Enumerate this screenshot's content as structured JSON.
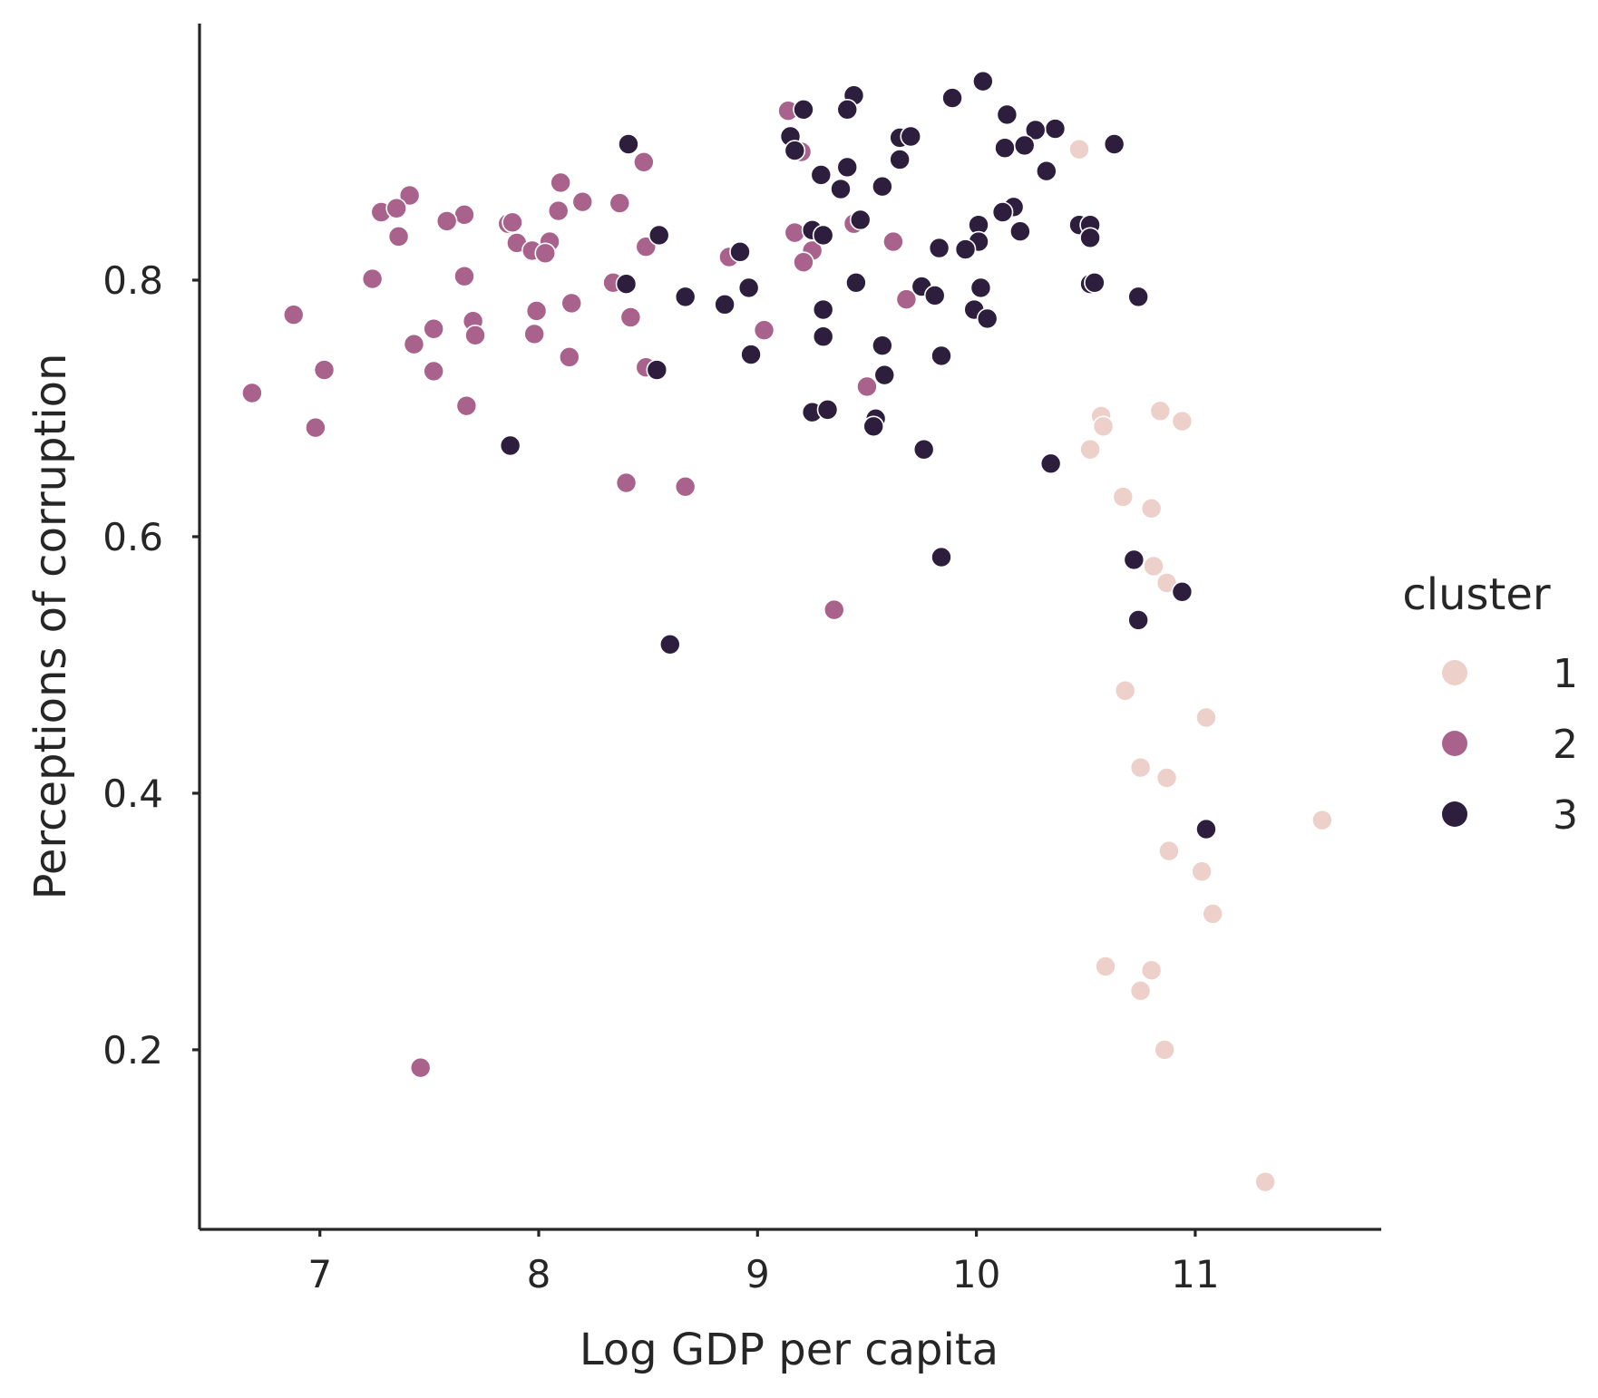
{
  "chart_data": {
    "type": "scatter",
    "xlabel": "Log GDP per capita",
    "ylabel": "Perceptions of corruption",
    "xlim": [
      6.45,
      11.85
    ],
    "ylim": [
      0.06,
      1.0
    ],
    "xticks": [
      7,
      8,
      9,
      10,
      11
    ],
    "yticks": [
      0.2,
      0.4,
      0.6,
      0.8
    ],
    "xtick_labels": [
      "7",
      "8",
      "9",
      "10",
      "11"
    ],
    "ytick_labels": [
      "0.2",
      "0.4",
      "0.6",
      "0.8"
    ],
    "grid": false,
    "legend": {
      "title": "cluster",
      "placement": "right"
    },
    "series": [
      {
        "name": "1",
        "color": "#ecd0c9",
        "points": [
          [
            10.47,
            0.902
          ],
          [
            10.57,
            0.694
          ],
          [
            10.58,
            0.686
          ],
          [
            10.52,
            0.668
          ],
          [
            10.67,
            0.631
          ],
          [
            10.8,
            0.622
          ],
          [
            10.84,
            0.698
          ],
          [
            10.94,
            0.69
          ],
          [
            10.81,
            0.577
          ],
          [
            10.87,
            0.564
          ],
          [
            10.68,
            0.48
          ],
          [
            11.05,
            0.459
          ],
          [
            10.75,
            0.42
          ],
          [
            10.87,
            0.412
          ],
          [
            11.58,
            0.379
          ],
          [
            10.88,
            0.355
          ],
          [
            11.03,
            0.339
          ],
          [
            11.08,
            0.306
          ],
          [
            10.59,
            0.265
          ],
          [
            10.8,
            0.262
          ],
          [
            10.75,
            0.246
          ],
          [
            10.86,
            0.2
          ],
          [
            11.32,
            0.097
          ]
        ]
      },
      {
        "name": "2",
        "color": "#a8628c",
        "points": [
          [
            9.14,
            0.932
          ],
          [
            9.2,
            0.9
          ],
          [
            8.48,
            0.892
          ],
          [
            8.1,
            0.876
          ],
          [
            7.41,
            0.866
          ],
          [
            8.2,
            0.861
          ],
          [
            8.37,
            0.86
          ],
          [
            7.28,
            0.853
          ],
          [
            7.35,
            0.856
          ],
          [
            8.09,
            0.854
          ],
          [
            7.66,
            0.851
          ],
          [
            7.58,
            0.846
          ],
          [
            7.86,
            0.844
          ],
          [
            7.88,
            0.845
          ],
          [
            9.44,
            0.844
          ],
          [
            9.17,
            0.837
          ],
          [
            7.36,
            0.834
          ],
          [
            9.62,
            0.83
          ],
          [
            7.9,
            0.829
          ],
          [
            8.05,
            0.83
          ],
          [
            8.49,
            0.826
          ],
          [
            7.97,
            0.823
          ],
          [
            8.03,
            0.821
          ],
          [
            9.25,
            0.823
          ],
          [
            8.87,
            0.818
          ],
          [
            9.21,
            0.814
          ],
          [
            7.24,
            0.801
          ],
          [
            7.66,
            0.803
          ],
          [
            8.34,
            0.798
          ],
          [
            8.15,
            0.782
          ],
          [
            9.68,
            0.785
          ],
          [
            7.99,
            0.776
          ],
          [
            6.88,
            0.773
          ],
          [
            8.42,
            0.771
          ],
          [
            7.7,
            0.768
          ],
          [
            7.52,
            0.762
          ],
          [
            9.03,
            0.761
          ],
          [
            7.98,
            0.758
          ],
          [
            7.71,
            0.757
          ],
          [
            7.43,
            0.75
          ],
          [
            8.14,
            0.74
          ],
          [
            8.49,
            0.732
          ],
          [
            7.02,
            0.73
          ],
          [
            7.52,
            0.729
          ],
          [
            9.5,
            0.717
          ],
          [
            6.69,
            0.712
          ],
          [
            7.67,
            0.702
          ],
          [
            6.98,
            0.685
          ],
          [
            8.4,
            0.642
          ],
          [
            8.67,
            0.639
          ],
          [
            9.35,
            0.543
          ],
          [
            7.46,
            0.186
          ]
        ]
      },
      {
        "name": "3",
        "color": "#2d1e3e",
        "points": [
          [
            10.03,
            0.955
          ],
          [
            9.44,
            0.944
          ],
          [
            9.89,
            0.942
          ],
          [
            9.21,
            0.933
          ],
          [
            9.41,
            0.933
          ],
          [
            10.14,
            0.929
          ],
          [
            10.36,
            0.918
          ],
          [
            10.27,
            0.917
          ],
          [
            9.15,
            0.912
          ],
          [
            9.65,
            0.911
          ],
          [
            9.7,
            0.912
          ],
          [
            8.41,
            0.906
          ],
          [
            10.63,
            0.906
          ],
          [
            10.13,
            0.903
          ],
          [
            10.22,
            0.905
          ],
          [
            9.17,
            0.901
          ],
          [
            9.65,
            0.894
          ],
          [
            9.41,
            0.888
          ],
          [
            10.32,
            0.885
          ],
          [
            9.29,
            0.882
          ],
          [
            9.57,
            0.873
          ],
          [
            9.38,
            0.871
          ],
          [
            10.17,
            0.857
          ],
          [
            10.12,
            0.853
          ],
          [
            9.47,
            0.847
          ],
          [
            10.01,
            0.843
          ],
          [
            10.47,
            0.843
          ],
          [
            10.52,
            0.843
          ],
          [
            9.25,
            0.839
          ],
          [
            10.2,
            0.838
          ],
          [
            9.3,
            0.835
          ],
          [
            8.55,
            0.835
          ],
          [
            10.52,
            0.833
          ],
          [
            10.01,
            0.83
          ],
          [
            9.83,
            0.825
          ],
          [
            9.95,
            0.824
          ],
          [
            8.92,
            0.822
          ],
          [
            8.4,
            0.797
          ],
          [
            9.45,
            0.798
          ],
          [
            10.52,
            0.797
          ],
          [
            10.54,
            0.798
          ],
          [
            8.96,
            0.794
          ],
          [
            9.75,
            0.795
          ],
          [
            10.02,
            0.794
          ],
          [
            8.67,
            0.787
          ],
          [
            9.81,
            0.788
          ],
          [
            10.74,
            0.787
          ],
          [
            8.85,
            0.781
          ],
          [
            9.3,
            0.777
          ],
          [
            9.99,
            0.777
          ],
          [
            10.05,
            0.77
          ],
          [
            9.3,
            0.756
          ],
          [
            9.57,
            0.749
          ],
          [
            8.97,
            0.742
          ],
          [
            9.84,
            0.741
          ],
          [
            8.54,
            0.73
          ],
          [
            9.58,
            0.726
          ],
          [
            9.25,
            0.697
          ],
          [
            9.32,
            0.699
          ],
          [
            9.54,
            0.692
          ],
          [
            9.53,
            0.686
          ],
          [
            7.87,
            0.671
          ],
          [
            9.76,
            0.668
          ],
          [
            10.34,
            0.657
          ],
          [
            9.84,
            0.584
          ],
          [
            10.72,
            0.582
          ],
          [
            10.94,
            0.557
          ],
          [
            10.74,
            0.535
          ],
          [
            8.6,
            0.516
          ],
          [
            11.05,
            0.372
          ]
        ]
      }
    ]
  }
}
